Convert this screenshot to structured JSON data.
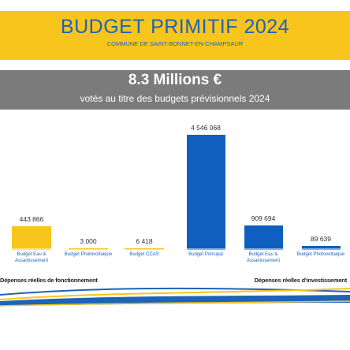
{
  "header": {
    "title": "BUDGET PRIMITIF 2024",
    "subtitle": "COMMUNE DE SAINT-BONNET-EN-CHAMPSAUR",
    "headline": "8.3 Millions €",
    "tagline": "votés au titre des budgets prévisionnels 2024"
  },
  "chart_data": [
    {
      "type": "bar",
      "title": "Dépenses réelles de fonctionnement",
      "color": "#f7c51c",
      "categories": [
        "Budget Eau & Assainissement",
        "Budget Photovoltaique",
        "Budget CCAS"
      ],
      "values": [
        443866,
        3000,
        6418
      ],
      "value_labels": [
        "443 866",
        "3 000",
        "6 418"
      ]
    },
    {
      "type": "bar",
      "title": "Dépenses réelles d'investissement",
      "color": "#0f5fc0",
      "categories": [
        "Budget Principal",
        "Budget Eau & Assainissement",
        "Budget Photovoltaique"
      ],
      "values": [
        4546068,
        909694,
        89639
      ],
      "value_labels": [
        "4 546 068",
        "909 694",
        "89 639"
      ]
    }
  ]
}
